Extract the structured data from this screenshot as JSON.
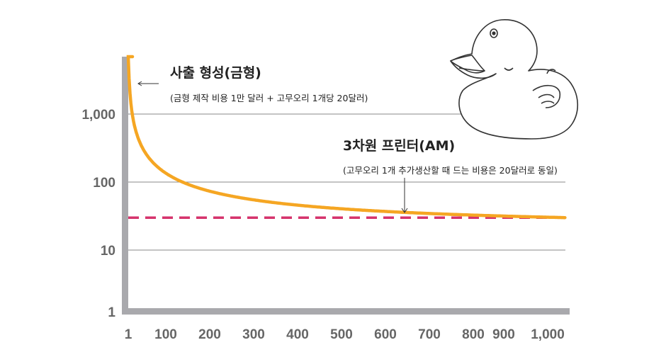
{
  "chart_data": {
    "type": "line",
    "title": "",
    "xlabel": "",
    "ylabel": "",
    "x_ticks": [
      "1",
      "100",
      "200",
      "300",
      "400",
      "500",
      "600",
      "700",
      "800",
      "900",
      "1,000"
    ],
    "y_ticks": [
      "1",
      "10",
      "100",
      "1,000"
    ],
    "y_scale": "log",
    "xlim": [
      1,
      1000
    ],
    "ylim": [
      1,
      5000
    ],
    "grid": "horizontal",
    "series": [
      {
        "kind": "injection-molding-curve",
        "color": "#f5a623",
        "x": [
          1,
          5,
          10,
          20,
          30,
          50,
          75,
          100,
          150,
          200,
          250,
          300,
          400,
          500,
          600,
          700,
          800,
          900,
          1000
        ],
        "y": [
          10020,
          2020,
          1020,
          520,
          353,
          220,
          153,
          120,
          87,
          70,
          60,
          53,
          45,
          40,
          37,
          34,
          32.5,
          31,
          30
        ]
      },
      {
        "kind": "3d-printer-line",
        "color": "#d6336c",
        "x": [
          1,
          1000
        ],
        "y": [
          30,
          30
        ]
      }
    ],
    "annotations": {
      "molding_title": "사출 형성(금형)",
      "molding_sub": "(금형 제작 비용 1만 달러 + 고무오리 1개당 20달러)",
      "printer_title": "3차원 프린터(AM)",
      "printer_sub": "(고무오리 1개 추가생산할 때 드는 비용은 20달러로 동일)"
    }
  },
  "decor": {
    "duck_icon": "rubber-duck-icon"
  }
}
